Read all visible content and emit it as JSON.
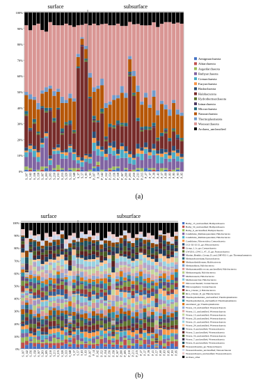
{
  "panel_a_label": "(a)",
  "panel_b_label": "(b)",
  "chart_data": [
    {
      "type": "bar",
      "stacked": true,
      "panel": "(a)",
      "region_labels": [
        "surface",
        "subsurface"
      ],
      "y_ticks": [
        "0%",
        "10%",
        "20%",
        "30%",
        "40%",
        "50%",
        "60%",
        "70%",
        "80%",
        "90%",
        "100%"
      ],
      "ylim": [
        0,
        100
      ],
      "categories": [
        "S_107",
        "S_142",
        "S_156",
        "S_158",
        "S_167",
        "S_203",
        "S_205",
        "S_210",
        "S_211",
        "S_215",
        "S_320",
        "S_333",
        "S_348",
        "S_37",
        "S_57",
        "S_83",
        "S_93",
        "P_107",
        "P_14",
        "P_142",
        "P_152",
        "P_154",
        "P_156",
        "P_158",
        "P_167",
        "P_200",
        "P_205",
        "P_210",
        "P_211",
        "P_215",
        "P_27",
        "P_37",
        "P_39",
        "P_41",
        "P_57",
        "P_60",
        "P_83",
        "P_85",
        "P_93",
        "P_95"
      ],
      "legend": [
        "Aenigmarchaeota",
        "Altiarchaeota",
        "Asgardarchaeota",
        "Bathyarchaeota",
        "Crenarchaeota",
        "Euryarchaeota",
        "Hadarchaeota",
        "Halobacterota",
        "Hydrothermarchaeota",
        "Iainarchaeota",
        "Micrarchaeota",
        "Nanoarchaeota",
        "Thermoplasmatota",
        "Woesearchaeota",
        "Archaea_unclassified"
      ],
      "colors": [
        "#4472c4",
        "#c0504d",
        "#9bbb59",
        "#8064a2",
        "#4bacc6",
        "#f79646",
        "#2c4d75",
        "#772c2a",
        "#5f7530",
        "#4d3b62",
        "#276a7c",
        "#b65708",
        "#729aca",
        "#d99694",
        "#000000"
      ],
      "series": [
        {
          "name": "Aenigmarchaeota",
          "values": [
            1,
            0,
            1,
            0,
            0,
            2,
            0,
            1,
            0,
            1,
            0,
            1,
            0,
            0,
            1,
            0,
            0,
            2,
            3,
            0,
            1,
            0,
            1,
            2,
            0,
            1,
            0,
            0,
            1,
            0,
            2,
            1,
            0,
            1,
            0,
            1,
            0,
            0,
            1,
            0
          ]
        },
        {
          "name": "Altiarchaeota",
          "values": [
            0,
            1,
            0,
            0,
            1,
            0,
            0,
            0,
            1,
            0,
            0,
            0,
            0,
            1,
            0,
            0,
            0,
            0,
            1,
            0,
            0,
            1,
            0,
            0,
            0,
            0,
            1,
            0,
            0,
            0,
            0,
            0,
            1,
            0,
            0,
            0,
            1,
            0,
            0,
            0
          ]
        },
        {
          "name": "Asgardarchaeota",
          "values": [
            2,
            1,
            0,
            1,
            2,
            1,
            0,
            1,
            3,
            1,
            0,
            1,
            2,
            1,
            0,
            0,
            1,
            1,
            2,
            1,
            0,
            1,
            2,
            1,
            0,
            1,
            0,
            1,
            1,
            2,
            0,
            1,
            1,
            0,
            2,
            1,
            0,
            1,
            1,
            0
          ]
        },
        {
          "name": "Bathyarchaeota",
          "values": [
            6,
            10,
            8,
            5,
            12,
            18,
            4,
            9,
            7,
            6,
            8,
            10,
            5,
            3,
            2,
            6,
            4,
            10,
            4,
            8,
            6,
            9,
            7,
            5,
            8,
            6,
            4,
            3,
            7,
            5,
            9,
            6,
            8,
            4,
            3,
            6,
            5,
            7,
            4,
            6
          ]
        },
        {
          "name": "Crenarchaeota",
          "values": [
            3,
            2,
            4,
            3,
            2,
            1,
            3,
            2,
            2,
            3,
            2,
            3,
            4,
            2,
            3,
            2,
            3,
            5,
            4,
            3,
            2,
            4,
            3,
            2,
            5,
            3,
            4,
            3,
            2,
            4,
            3,
            2,
            3,
            5,
            4,
            3,
            2,
            4,
            3,
            2
          ]
        },
        {
          "name": "Euryarchaeota",
          "values": [
            1,
            2,
            1,
            3,
            1,
            2,
            1,
            1,
            2,
            1,
            2,
            1,
            1,
            2,
            1,
            2,
            1,
            3,
            2,
            1,
            2,
            1,
            2,
            1,
            2,
            1,
            2,
            1,
            3,
            2,
            1,
            2,
            1,
            1,
            2,
            1,
            2,
            1,
            2,
            1
          ]
        },
        {
          "name": "Hadarchaeota",
          "values": [
            2,
            1,
            2,
            1,
            3,
            1,
            2,
            1,
            2,
            1,
            2,
            1,
            2,
            1,
            2,
            1,
            2,
            4,
            3,
            2,
            3,
            2,
            4,
            3,
            2,
            3,
            2,
            2,
            3,
            2,
            3,
            2,
            3,
            2,
            3,
            2,
            2,
            3,
            2,
            2
          ]
        },
        {
          "name": "Halobacterota",
          "values": [
            20,
            8,
            14,
            10,
            18,
            12,
            28,
            16,
            22,
            10,
            15,
            12,
            10,
            55,
            72,
            58,
            35,
            6,
            12,
            20,
            5,
            10,
            8,
            15,
            10,
            12,
            48,
            35,
            14,
            10,
            8,
            12,
            10,
            6,
            8,
            10,
            7,
            9,
            6,
            8
          ]
        },
        {
          "name": "Hydrothermarchaeota",
          "values": [
            1,
            0,
            1,
            1,
            0,
            1,
            0,
            1,
            0,
            1,
            1,
            0,
            1,
            0,
            0,
            1,
            0,
            1,
            0,
            1,
            1,
            0,
            1,
            0,
            1,
            0,
            1,
            1,
            0,
            1,
            0,
            1,
            0,
            1,
            0,
            1,
            0,
            1,
            0,
            1
          ]
        },
        {
          "name": "Iainarchaeota",
          "values": [
            0,
            1,
            0,
            0,
            1,
            0,
            1,
            0,
            0,
            1,
            0,
            1,
            0,
            0,
            1,
            0,
            0,
            1,
            0,
            0,
            1,
            0,
            0,
            1,
            0,
            0,
            1,
            0,
            0,
            1,
            0,
            0,
            1,
            0,
            0,
            1,
            0,
            0,
            1,
            0
          ]
        },
        {
          "name": "Micrarchaeota",
          "values": [
            2,
            1,
            2,
            1,
            1,
            2,
            1,
            2,
            1,
            2,
            1,
            2,
            1,
            1,
            0,
            1,
            1,
            2,
            1,
            2,
            1,
            2,
            1,
            2,
            1,
            2,
            1,
            1,
            2,
            1,
            2,
            1,
            2,
            1,
            2,
            1,
            2,
            1,
            2,
            1
          ]
        },
        {
          "name": "Nanoarchaeota",
          "values": [
            10,
            18,
            12,
            14,
            8,
            10,
            12,
            14,
            10,
            16,
            12,
            14,
            18,
            6,
            4,
            6,
            12,
            15,
            20,
            14,
            18,
            12,
            16,
            14,
            18,
            15,
            8,
            10,
            16,
            14,
            18,
            12,
            16,
            14,
            18,
            12,
            14,
            16,
            12,
            14
          ]
        },
        {
          "name": "Thermoplasmatota",
          "values": [
            2,
            3,
            2,
            4,
            2,
            3,
            2,
            3,
            2,
            4,
            2,
            3,
            2,
            2,
            1,
            2,
            3,
            3,
            2,
            4,
            3,
            2,
            3,
            2,
            4,
            3,
            2,
            3,
            4,
            2,
            3,
            2,
            4,
            3,
            2,
            3,
            4,
            2,
            3,
            2
          ]
        },
        {
          "name": "Woesearchaeota",
          "values": [
            42,
            40,
            45,
            50,
            38,
            35,
            40,
            42,
            40,
            45,
            48,
            43,
            45,
            18,
            8,
            14,
            30,
            40,
            38,
            33,
            50,
            48,
            44,
            45,
            36,
            40,
            22,
            28,
            38,
            48,
            42,
            50,
            42,
            52,
            48,
            52,
            55,
            48,
            52,
            56
          ]
        },
        {
          "name": "Archaea_unclassified",
          "values": [
            8,
            11,
            8,
            7,
            11,
            12,
            6,
            8,
            8,
            8,
            7,
            8,
            9,
            8,
            8,
            7,
            8,
            7,
            8,
            7,
            7,
            8,
            8,
            7,
            8,
            8,
            6,
            7,
            7,
            8,
            8,
            8,
            6,
            9,
            7,
            6,
            6,
            7,
            6,
            7
          ]
        }
      ]
    },
    {
      "type": "bar",
      "stacked": true,
      "panel": "(b)",
      "region_labels": [
        "surface",
        "subsurface"
      ],
      "y_ticks": [
        "0%",
        "10%",
        "20%",
        "30%",
        "40%",
        "50%",
        "60%",
        "70%",
        "80%",
        "90%",
        "100%"
      ],
      "ylim": [
        0,
        100
      ],
      "categories": [
        "S_107",
        "S_142",
        "S_156",
        "S_158",
        "S_167",
        "S_203",
        "S_205",
        "S_210",
        "S_211",
        "S_215",
        "S_320",
        "S_333",
        "S_348",
        "S_37",
        "S_57",
        "S_83",
        "S_93",
        "P_107",
        "P_14",
        "P_142",
        "P_152",
        "P_154",
        "P_156",
        "P_158",
        "P_167",
        "P_200",
        "P_205",
        "P_210",
        "P_211",
        "P_215",
        "P_27",
        "P_37",
        "P_39",
        "P_41",
        "P_57",
        "P_60",
        "P_83",
        "P_85",
        "P_93",
        "P_95"
      ],
      "legend": [
        "Bathy_15_unclassified; Bathyarchaeota",
        "Bathy_5b_unclassified; Bathyarchaeota",
        "Bathy_6_unclassified; Bathyarchaeota",
        "Candidatus_Methanoperedens; Halobacterota",
        "Candidatus_Methanoperedens; Halobacterota",
        "Candidatus_Nitrosotalea; Crenarchaeota",
        "CG1-02-32-21_ge; Micrarchaeota",
        "Group_1.1c_ge; Crenarchaeota",
        "GW2011_GWC1_47_15_ge; Nanoarchaeota",
        "Marine_Benthic_Group_D_and_DHVEG-1_ge; Thermoplasmatota",
        "Methanobacterium; Euryarchaeota",
        "Methanofastidiosum; Halobacterota",
        "Methanolinea; Halobacterota",
        "Methanomassiliicoccus_unclassified; Halobacterota",
        "Methanoregula; Halobacterota",
        "Methanosaeta; Halobacterota",
        "Methanosarcina; Halobacterota",
        "Nitrosoarchaeum; Crenarchaeota",
        "Nitrosospahera; Crenarchaeota",
        "Rice_Cluster_I; Halobacterota",
        "Rice_Cluster_II_ge; Halobacterota",
        "Thermoplasmatales_unclassified; Thermoplasmatota",
        "Thermoplasmatota_unclassified; Thermoplasmatota",
        "uncultured_ge; Thermoplasmatota",
        "Woese_10_unclassified; Woesearchaeota",
        "Woese_11_unclassified; Woesearchaeota",
        "Woese_13_unclassified; Woesearchaeota",
        "Woese_20_unclassified; Woesearchaeota",
        "Woese_21_unclassified; Woesearchaeota",
        "Woese_24_unclassified; Woesearchaeota",
        "Woese_4_unclassified; Woesearchaeota",
        "Woese_5_unclassified; Woesearchaeota",
        "Woese_5b_unclassified; Woesearchaeota",
        "Woese_7_unclassified; Woesearchaeota",
        "Woese_8_unclassified; Woesearchaeota",
        "Woesearchaeales_ge; Nanoarchaeota",
        "Woesearchaeales_unclassified; Nanoarchaeota",
        "Woesearchaeota_unclassified; Woesearchaeota",
        "Archaea_other"
      ],
      "colors": [
        "#4472c4",
        "#c0504d",
        "#9bbb59",
        "#8064a2",
        "#4bacc6",
        "#f79646",
        "#2c4d75",
        "#772c2a",
        "#5f7530",
        "#4d3b62",
        "#276a7c",
        "#b65708",
        "#729aca",
        "#d99694",
        "#b6cd86",
        "#a692bf",
        "#80c6da",
        "#f9b074",
        "#375f94",
        "#973a37",
        "#779543",
        "#604a7c",
        "#3390a4",
        "#db7515",
        "#8fa8d4",
        "#dba8a6",
        "#c4d69b",
        "#b4a5c8",
        "#98d2e1",
        "#fac291",
        "#1f3b5a",
        "#5c2120",
        "#475923",
        "#3a2c4a",
        "#1d505d",
        "#8a4206",
        "#c9d7ec",
        "#ecc9c8",
        "#000000"
      ],
      "other_values": [
        5,
        12,
        6,
        10,
        9,
        14,
        8,
        11,
        7,
        9,
        6,
        13,
        10,
        8,
        12,
        7,
        9,
        6,
        10,
        8,
        14,
        12,
        7,
        9,
        11,
        10,
        6,
        8,
        12,
        9,
        7,
        11,
        8,
        10,
        13,
        6,
        9,
        8,
        11,
        7
      ]
    }
  ]
}
